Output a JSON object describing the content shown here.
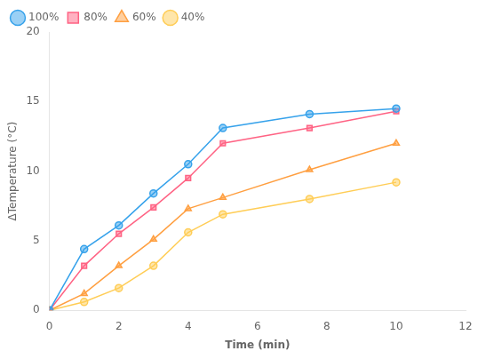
{
  "chart_data": {
    "type": "line",
    "x_label": "Time (min)",
    "y_label": "ΔTemperature (°C)",
    "x": [
      0,
      1,
      2,
      3,
      4,
      5,
      7.5,
      10
    ],
    "series": [
      {
        "name": "100%",
        "values": [
          0,
          4.4,
          6.1,
          8.4,
          10.5,
          13.1,
          14.1,
          14.5
        ],
        "marker": "circle"
      },
      {
        "name": "80%",
        "values": [
          0,
          3.2,
          5.5,
          7.4,
          9.5,
          12.0,
          13.1,
          14.3
        ],
        "marker": "square"
      },
      {
        "name": "60%",
        "values": [
          0,
          1.2,
          3.2,
          5.1,
          7.3,
          8.1,
          10.1,
          12.0
        ],
        "marker": "triangle"
      },
      {
        "name": "40%",
        "values": [
          0,
          0.6,
          1.6,
          3.2,
          5.6,
          6.9,
          8.0,
          9.2
        ],
        "marker": "circle"
      }
    ],
    "xlim": [
      0,
      12
    ],
    "xticks": [
      0,
      2,
      4,
      6,
      8,
      10,
      12
    ],
    "ylim": [
      0,
      20
    ],
    "yticks": [
      0,
      5,
      10,
      15,
      20
    ],
    "grid": false,
    "legend": "upper left"
  }
}
